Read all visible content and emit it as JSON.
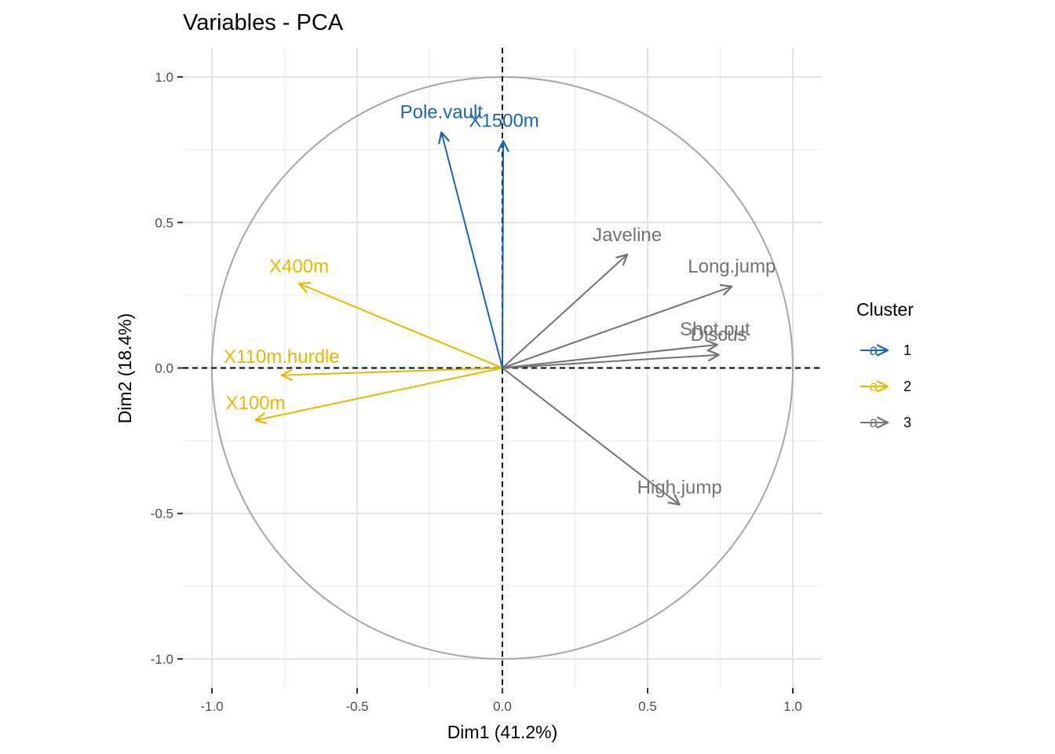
{
  "chart_data": {
    "type": "scatter",
    "subtype": "pca-variables-correlation-circle",
    "title": "Variables - PCA",
    "xlabel": "Dim1 (41.2%)",
    "ylabel": "Dim2 (18.4%)",
    "xlim": [
      -1.1,
      1.1
    ],
    "ylim": [
      -1.1,
      1.1
    ],
    "x_ticks": [
      -1.0,
      -0.5,
      0.0,
      0.5,
      1.0
    ],
    "x_tick_labels": [
      "-1.0",
      "-0.5",
      "0.0",
      "0.5",
      "1.0"
    ],
    "y_ticks": [
      -1.0,
      -0.5,
      0.0,
      0.5,
      1.0
    ],
    "y_tick_labels": [
      "-1.0",
      "-0.5",
      "0.0",
      "0.5",
      "1.0"
    ],
    "grid": true,
    "reference_lines": {
      "x": 0,
      "y": 0,
      "style": "dashed"
    },
    "unit_circle": true,
    "legend": {
      "title": "Cluster",
      "position": "right",
      "glyph": "a",
      "entries": [
        {
          "label": "1",
          "color": "#1565C0"
        },
        {
          "label": "2",
          "color": "#E7B800"
        },
        {
          "label": "3",
          "color": "#737373"
        }
      ]
    },
    "variables": [
      {
        "name": "X100m",
        "x": -0.85,
        "y": -0.18,
        "cluster": "2"
      },
      {
        "name": "Long.jump",
        "x": 0.79,
        "y": 0.28,
        "cluster": "3"
      },
      {
        "name": "Shot.put",
        "x": 0.74,
        "y": 0.08,
        "cluster": "3"
      },
      {
        "name": "High.jump",
        "x": 0.61,
        "y": -0.47,
        "cluster": "3"
      },
      {
        "name": "X400m",
        "x": -0.7,
        "y": 0.29,
        "cluster": "2"
      },
      {
        "name": "X110m.hurdle",
        "x": -0.76,
        "y": -0.025,
        "cluster": "2"
      },
      {
        "name": "Discus",
        "x": 0.745,
        "y": 0.045,
        "cluster": "3"
      },
      {
        "name": "Pole.vault",
        "x": -0.21,
        "y": 0.81,
        "cluster": "1"
      },
      {
        "name": "Javeline",
        "x": 0.43,
        "y": 0.39,
        "cluster": "3"
      },
      {
        "name": "X1500m",
        "x": 0.003,
        "y": 0.78,
        "cluster": "1"
      }
    ]
  }
}
